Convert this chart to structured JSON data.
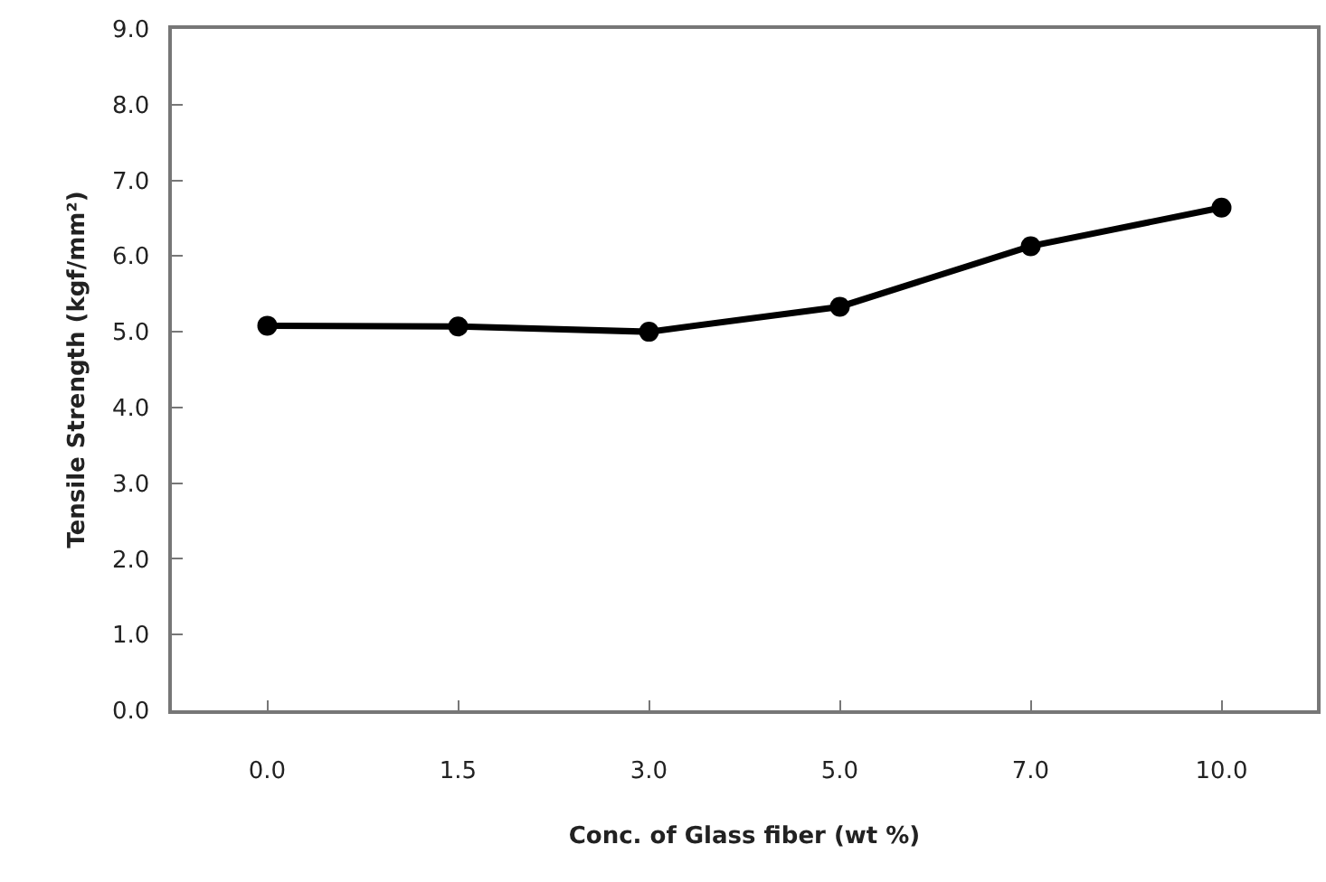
{
  "chart_data": {
    "type": "line",
    "xlabel": "Conc. of Glass fiber (wt %)",
    "ylabel": "Tensile Strength (kgf/mm²)",
    "categories": [
      "0.0",
      "1.5",
      "3.0",
      "5.0",
      "7.0",
      "10.0"
    ],
    "series": [
      {
        "color": "#000000",
        "values": [
          5.08,
          5.07,
          5.0,
          5.33,
          6.13,
          6.64
        ]
      }
    ],
    "ylim": [
      0,
      9
    ],
    "yticks": [
      {
        "value": 0,
        "label": "0.0"
      },
      {
        "value": 1,
        "label": "1.0"
      },
      {
        "value": 2,
        "label": "2.0"
      },
      {
        "value": 3,
        "label": "3.0"
      },
      {
        "value": 4,
        "label": "4.0"
      },
      {
        "value": 5,
        "label": "5.0"
      },
      {
        "value": 6,
        "label": "6.0"
      },
      {
        "value": 7,
        "label": "7.0"
      },
      {
        "value": 8,
        "label": "8.0"
      },
      {
        "value": 9,
        "label": "9.0"
      }
    ],
    "grid": false,
    "legend": false,
    "marker": "circle",
    "line_style": "solid"
  }
}
